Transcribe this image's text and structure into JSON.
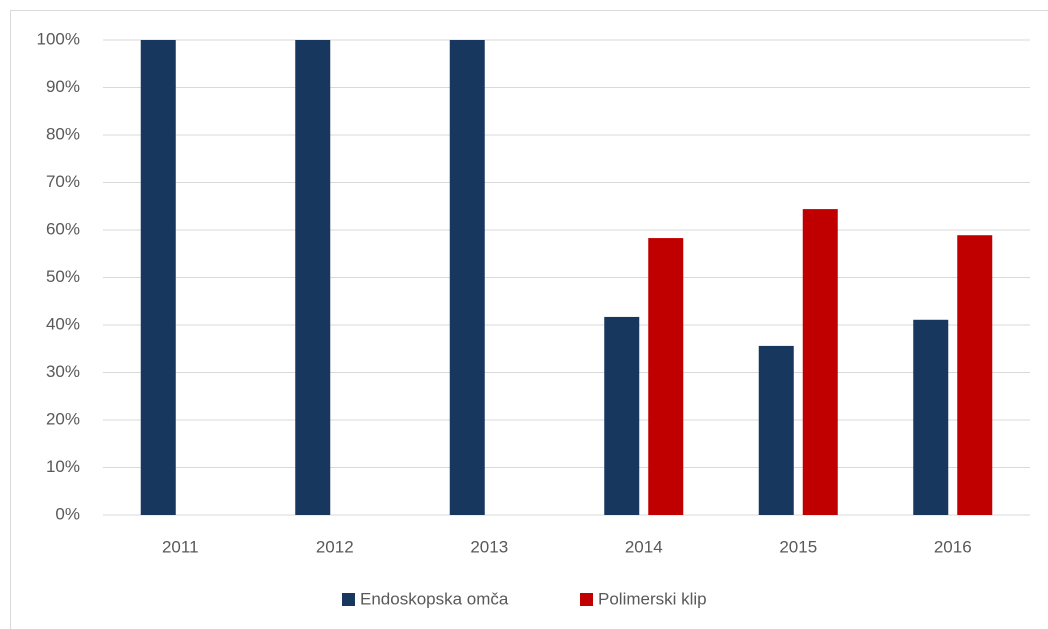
{
  "chart_data": {
    "type": "bar",
    "categories": [
      "2011",
      "2012",
      "2013",
      "2014",
      "2015",
      "2016"
    ],
    "series": [
      {
        "name": "Endoskopska omča",
        "color": "#17375e",
        "values": [
          100,
          100,
          100,
          41.7,
          35.6,
          41.1
        ]
      },
      {
        "name": "Polimerski klip",
        "color": "#c00000",
        "values": [
          0,
          0,
          0,
          58.3,
          64.4,
          58.9
        ]
      }
    ],
    "ylim": [
      0,
      100
    ],
    "yticks": [
      {
        "value": 0,
        "label": "0%"
      },
      {
        "value": 10,
        "label": "10%"
      },
      {
        "value": 20,
        "label": "20%"
      },
      {
        "value": 30,
        "label": "30%"
      },
      {
        "value": 40,
        "label": "40%"
      },
      {
        "value": 50,
        "label": "50%"
      },
      {
        "value": 60,
        "label": "60%"
      },
      {
        "value": 70,
        "label": "70%"
      },
      {
        "value": 80,
        "label": "80%"
      },
      {
        "value": 90,
        "label": "90%"
      },
      {
        "value": 100,
        "label": "100%"
      }
    ],
    "grid": true,
    "legend": "bottom"
  }
}
